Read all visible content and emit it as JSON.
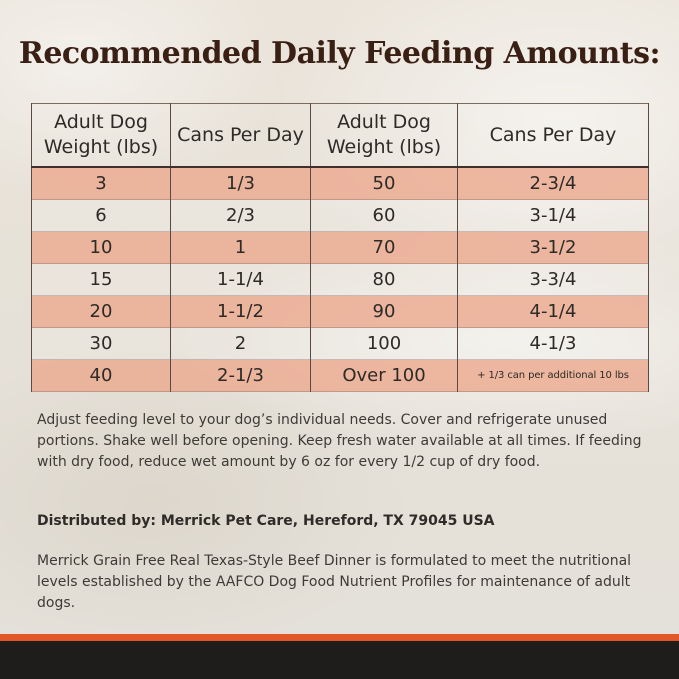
{
  "title": "Recommended Daily Feeding Amounts:",
  "table": {
    "headers": [
      "Adult Dog Weight (lbs)",
      "Cans Per Day",
      "Adult Dog Weight (lbs)",
      "Cans Per Day"
    ],
    "rows": [
      [
        "3",
        "1/3",
        "50",
        "2-3/4"
      ],
      [
        "6",
        "2/3",
        "60",
        "3-1/4"
      ],
      [
        "10",
        "1",
        "70",
        "3-1/2"
      ],
      [
        "15",
        "1-1/4",
        "80",
        "3-3/4"
      ],
      [
        "20",
        "1-1/2",
        "90",
        "4-1/4"
      ],
      [
        "30",
        "2",
        "100",
        "4-1/3"
      ],
      [
        "40",
        "2-1/3",
        "Over 100",
        "+ 1/3 can per additional 10 lbs"
      ]
    ]
  },
  "instructions": "Adjust feeding level to your dog’s individual needs. Cover and refrigerate unused portions. Shake well before opening. Keep fresh water available at all times. If feeding with dry food, reduce wet amount by 6 oz for every 1/2 cup of dry food.",
  "distributor": "Distributed by: Merrick Pet Care, Hereford, TX 79045 USA",
  "aafco_statement": "Merrick Grain Free Real Texas-Style Beef Dinner is formulated to meet the nutritional levels established by the AAFCO Dog Food Nutrient Profiles for maintenance of adult dogs.",
  "colors": {
    "title": "#3a1f14",
    "row_highlight": "#eca78c",
    "band_dark": "#1e1d1c",
    "band_accent": "#e2562a"
  }
}
